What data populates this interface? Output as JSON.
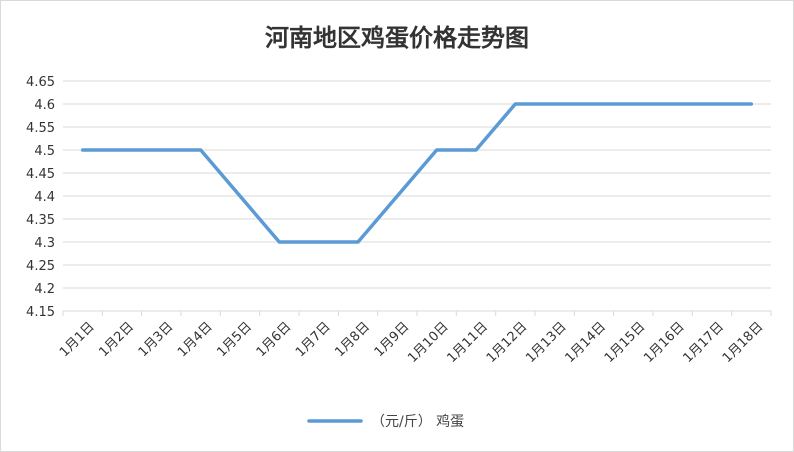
{
  "chart_data": {
    "type": "line",
    "title": "河南地区鸡蛋价格走势图",
    "categories": [
      "1月1日",
      "1月2日",
      "1月3日",
      "1月4日",
      "1月5日",
      "1月6日",
      "1月7日",
      "1月8日",
      "1月9日",
      "1月10日",
      "1月11日",
      "1月12日",
      "1月13日",
      "1月14日",
      "1月15日",
      "1月16日",
      "1月17日",
      "1月18日"
    ],
    "series": [
      {
        "name": "（元/斤） 鸡蛋",
        "values": [
          4.5,
          4.5,
          4.5,
          4.5,
          4.4,
          4.3,
          4.3,
          4.3,
          4.4,
          4.5,
          4.5,
          4.6,
          4.6,
          4.6,
          4.6,
          4.6,
          4.6,
          4.6
        ],
        "color": "#5b9bd5"
      }
    ],
    "ylim": [
      4.15,
      4.65
    ],
    "yticks": [
      "4.15",
      "4.2",
      "4.25",
      "4.3",
      "4.35",
      "4.4",
      "4.45",
      "4.5",
      "4.55",
      "4.6",
      "4.65"
    ],
    "grid": true,
    "legend": "bottom"
  }
}
